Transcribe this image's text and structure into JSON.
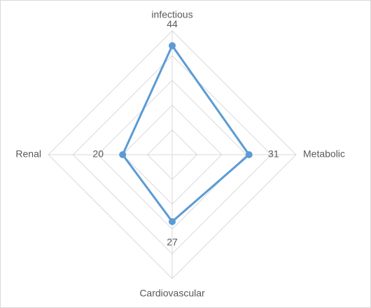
{
  "chart_data": {
    "type": "radar",
    "categories": [
      "infectious",
      "Metabolic",
      "Cardiovascular",
      "Renal"
    ],
    "values": [
      44,
      31,
      27,
      20
    ],
    "color": "#5b9bd5",
    "rlim": [
      0,
      50
    ],
    "rticks": [
      10,
      20,
      30,
      40,
      50
    ],
    "grid": true
  }
}
